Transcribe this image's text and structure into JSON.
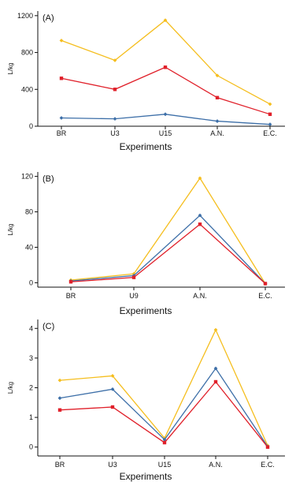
{
  "chart_data": [
    {
      "type": "line",
      "panel_label": "(A)",
      "xlabel": "Experiments",
      "ylabel": "L/kg",
      "categories": [
        "BR",
        "U3",
        "U15",
        "A.N.",
        "E.C."
      ],
      "ylim": [
        0,
        1250
      ],
      "yticks": [
        0,
        400,
        800,
        1200
      ],
      "ytick_labels": [
        "0",
        "400",
        "800",
        "1200"
      ],
      "grid": false,
      "legend": "none",
      "series": [
        {
          "color": "#F5BE1E",
          "marker": "diamond",
          "values": [
            930,
            715,
            1150,
            550,
            240
          ]
        },
        {
          "color": "#E0202A",
          "marker": "square",
          "values": [
            520,
            400,
            640,
            310,
            130
          ]
        },
        {
          "color": "#3D6FA8",
          "marker": "diamond",
          "values": [
            90,
            80,
            130,
            55,
            20
          ]
        }
      ]
    },
    {
      "type": "line",
      "panel_label": "(B)",
      "xlabel": "Experiments",
      "ylabel": "L/kg",
      "categories": [
        "BR",
        "U9",
        "A.N.",
        "E.C."
      ],
      "ylim": [
        -5,
        125
      ],
      "yticks": [
        0,
        40,
        80,
        120
      ],
      "ytick_labels": [
        "0",
        "40",
        "80",
        "120"
      ],
      "grid": false,
      "legend": "none",
      "series": [
        {
          "color": "#F5BE1E",
          "marker": "diamond",
          "values": [
            3,
            10,
            118,
            -1
          ]
        },
        {
          "color": "#3D6FA8",
          "marker": "diamond",
          "values": [
            2,
            8,
            76,
            -1
          ]
        },
        {
          "color": "#E0202A",
          "marker": "square",
          "values": [
            1,
            6,
            66,
            -1
          ]
        }
      ]
    },
    {
      "type": "line",
      "panel_label": "(C)",
      "xlabel": "Experiments",
      "ylabel": "L/kg",
      "categories": [
        "BR",
        "U3",
        "U15",
        "A.N.",
        "E.C."
      ],
      "ylim": [
        -0.3,
        4.3
      ],
      "yticks": [
        0,
        1,
        2,
        3,
        4
      ],
      "ytick_labels": [
        "0",
        "1",
        "2",
        "3",
        "4"
      ],
      "grid": false,
      "legend": "none",
      "series": [
        {
          "color": "#F5BE1E",
          "marker": "diamond",
          "values": [
            2.25,
            2.4,
            0.3,
            3.95,
            0.05
          ]
        },
        {
          "color": "#3D6FA8",
          "marker": "diamond",
          "values": [
            1.65,
            1.95,
            0.25,
            2.65,
            0.02
          ]
        },
        {
          "color": "#E0202A",
          "marker": "square",
          "values": [
            1.25,
            1.35,
            0.15,
            2.2,
            0.0
          ]
        }
      ]
    }
  ]
}
